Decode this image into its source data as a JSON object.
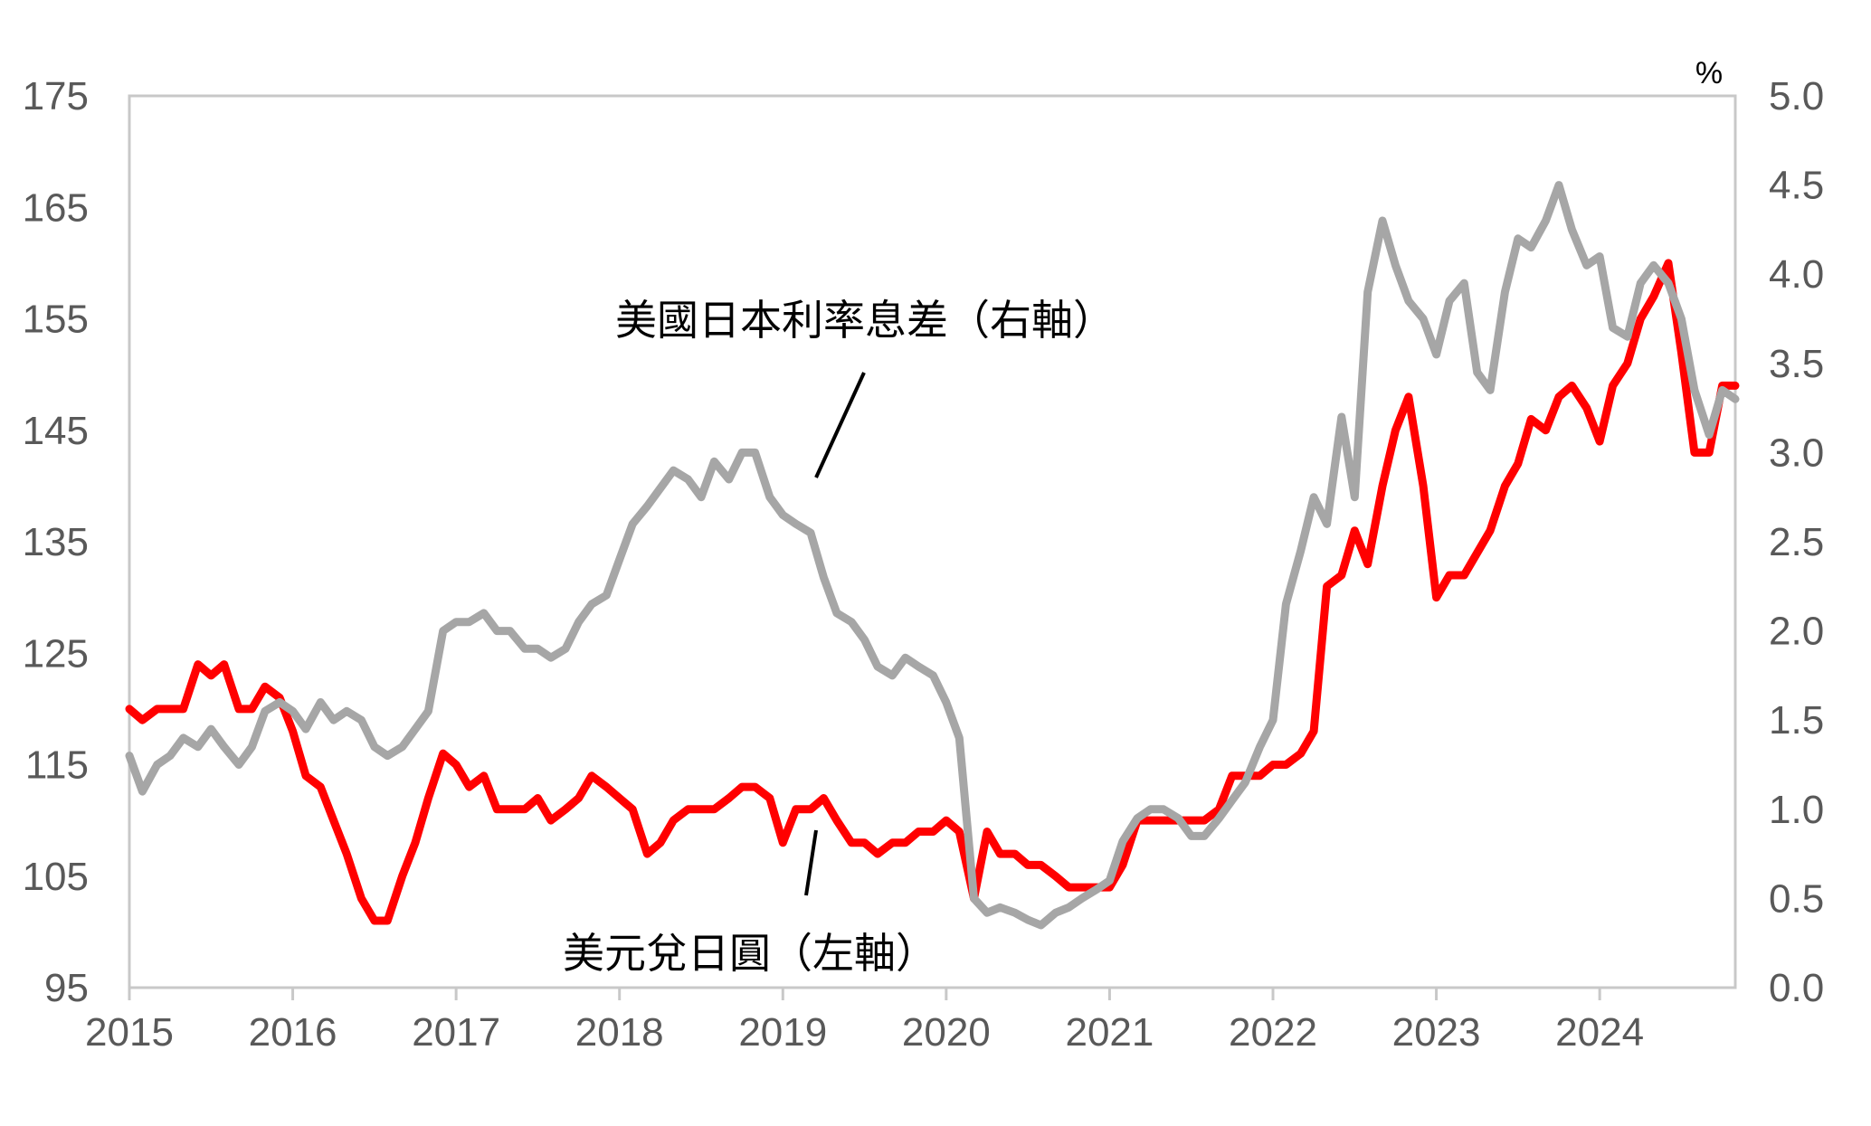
{
  "chart_data": {
    "type": "line",
    "x_ticks": [
      "2015",
      "2016",
      "2017",
      "2018",
      "2019",
      "2020",
      "2021",
      "2022",
      "2023",
      "2024"
    ],
    "xlim": [
      2015,
      2024.83
    ],
    "left_axis": {
      "ticks": [
        "175",
        "165",
        "155",
        "145",
        "135",
        "125",
        "115",
        "105",
        "95"
      ],
      "ylim": [
        95,
        175
      ]
    },
    "right_axis": {
      "unit": "%",
      "ticks": [
        "5.0",
        "4.5",
        "4.0",
        "3.5",
        "3.0",
        "2.5",
        "2.0",
        "1.5",
        "1.0",
        "0.5",
        "0.0"
      ],
      "ylim": [
        0,
        5
      ]
    },
    "grid": false,
    "series": [
      {
        "name": "美元兌日圓（左軸）",
        "axis": "left",
        "color": "#ff0000",
        "x": [
          2015.0,
          2015.08,
          2015.17,
          2015.25,
          2015.33,
          2015.42,
          2015.5,
          2015.58,
          2015.67,
          2015.75,
          2015.83,
          2015.92,
          2016.0,
          2016.08,
          2016.17,
          2016.25,
          2016.33,
          2016.42,
          2016.5,
          2016.58,
          2016.67,
          2016.75,
          2016.83,
          2016.92,
          2017.0,
          2017.08,
          2017.17,
          2017.25,
          2017.33,
          2017.42,
          2017.5,
          2017.58,
          2017.67,
          2017.75,
          2017.83,
          2017.92,
          2018.0,
          2018.08,
          2018.17,
          2018.25,
          2018.33,
          2018.42,
          2018.5,
          2018.58,
          2018.67,
          2018.75,
          2018.83,
          2018.92,
          2019.0,
          2019.08,
          2019.17,
          2019.25,
          2019.33,
          2019.42,
          2019.5,
          2019.58,
          2019.67,
          2019.75,
          2019.83,
          2019.92,
          2020.0,
          2020.08,
          2020.17,
          2020.25,
          2020.33,
          2020.42,
          2020.5,
          2020.58,
          2020.67,
          2020.75,
          2020.83,
          2020.92,
          2021.0,
          2021.08,
          2021.17,
          2021.25,
          2021.33,
          2021.42,
          2021.5,
          2021.58,
          2021.67,
          2021.75,
          2021.83,
          2021.92,
          2022.0,
          2022.08,
          2022.17,
          2022.25,
          2022.33,
          2022.42,
          2022.5,
          2022.58,
          2022.67,
          2022.75,
          2022.83,
          2022.92,
          2023.0,
          2023.08,
          2023.17,
          2023.25,
          2023.33,
          2023.42,
          2023.5,
          2023.58,
          2023.67,
          2023.75,
          2023.83,
          2023.92,
          2024.0,
          2024.08,
          2024.17,
          2024.25,
          2024.33,
          2024.42,
          2024.5,
          2024.58,
          2024.67,
          2024.75,
          2024.83
        ],
        "values": [
          120,
          119,
          120,
          120,
          120,
          124,
          123,
          124,
          120,
          120,
          122,
          121,
          118,
          114,
          113,
          110,
          107,
          103,
          101,
          101,
          105,
          108,
          112,
          116,
          115,
          113,
          114,
          111,
          111,
          111,
          112,
          110,
          111,
          112,
          114,
          113,
          112,
          111,
          107,
          108,
          110,
          111,
          111,
          111,
          112,
          113,
          113,
          112,
          108,
          111,
          111,
          112,
          110,
          108,
          108,
          107,
          108,
          108,
          109,
          109,
          110,
          109,
          103,
          109,
          107,
          107,
          106,
          106,
          105,
          104,
          104,
          104,
          104,
          106,
          110,
          110,
          110,
          110,
          110,
          110,
          111,
          114,
          114,
          114,
          115,
          115,
          116,
          118,
          131,
          132,
          136,
          133,
          140,
          145,
          148,
          140,
          130,
          132,
          132,
          134,
          136,
          140,
          142,
          146,
          145,
          148,
          149,
          147,
          144,
          149,
          151,
          155,
          157,
          160,
          152,
          143,
          143,
          149,
          149
        ]
      },
      {
        "name": "美國日本利率息差（右軸）",
        "axis": "right",
        "color": "#a6a6a6",
        "x": [
          2015.0,
          2015.08,
          2015.17,
          2015.25,
          2015.33,
          2015.42,
          2015.5,
          2015.58,
          2015.67,
          2015.75,
          2015.83,
          2015.92,
          2016.0,
          2016.08,
          2016.17,
          2016.25,
          2016.33,
          2016.42,
          2016.5,
          2016.58,
          2016.67,
          2016.75,
          2016.83,
          2016.92,
          2017.0,
          2017.08,
          2017.17,
          2017.25,
          2017.33,
          2017.42,
          2017.5,
          2017.58,
          2017.67,
          2017.75,
          2017.83,
          2017.92,
          2018.0,
          2018.08,
          2018.17,
          2018.25,
          2018.33,
          2018.42,
          2018.5,
          2018.58,
          2018.67,
          2018.75,
          2018.83,
          2018.92,
          2019.0,
          2019.08,
          2019.17,
          2019.25,
          2019.33,
          2019.42,
          2019.5,
          2019.58,
          2019.67,
          2019.75,
          2019.83,
          2019.92,
          2020.0,
          2020.08,
          2020.17,
          2020.25,
          2020.33,
          2020.42,
          2020.5,
          2020.58,
          2020.67,
          2020.75,
          2020.83,
          2020.92,
          2021.0,
          2021.08,
          2021.17,
          2021.25,
          2021.33,
          2021.42,
          2021.5,
          2021.58,
          2021.67,
          2021.75,
          2021.83,
          2021.92,
          2022.0,
          2022.08,
          2022.17,
          2022.25,
          2022.33,
          2022.42,
          2022.5,
          2022.58,
          2022.67,
          2022.75,
          2022.83,
          2022.92,
          2023.0,
          2023.08,
          2023.17,
          2023.25,
          2023.33,
          2023.42,
          2023.5,
          2023.58,
          2023.67,
          2023.75,
          2023.83,
          2023.92,
          2024.0,
          2024.08,
          2024.17,
          2024.25,
          2024.33,
          2024.42,
          2024.5,
          2024.58,
          2024.67,
          2024.75,
          2024.83
        ],
        "values": [
          1.3,
          1.1,
          1.25,
          1.3,
          1.4,
          1.35,
          1.45,
          1.35,
          1.25,
          1.35,
          1.55,
          1.6,
          1.55,
          1.45,
          1.6,
          1.5,
          1.55,
          1.5,
          1.35,
          1.3,
          1.35,
          1.45,
          1.55,
          2.0,
          2.05,
          2.05,
          2.1,
          2.0,
          2.0,
          1.9,
          1.9,
          1.85,
          1.9,
          2.05,
          2.15,
          2.2,
          2.4,
          2.6,
          2.7,
          2.8,
          2.9,
          2.85,
          2.75,
          2.95,
          2.85,
          3.0,
          3.0,
          2.75,
          2.65,
          2.6,
          2.55,
          2.3,
          2.1,
          2.05,
          1.95,
          1.8,
          1.75,
          1.85,
          1.8,
          1.75,
          1.6,
          1.4,
          0.5,
          0.42,
          0.45,
          0.42,
          0.38,
          0.35,
          0.42,
          0.45,
          0.5,
          0.55,
          0.6,
          0.82,
          0.95,
          1.0,
          1.0,
          0.95,
          0.85,
          0.85,
          0.95,
          1.05,
          1.15,
          1.35,
          1.5,
          2.15,
          2.45,
          2.75,
          2.6,
          3.2,
          2.75,
          3.9,
          4.3,
          4.05,
          3.85,
          3.75,
          3.55,
          3.85,
          3.95,
          3.45,
          3.35,
          3.9,
          4.2,
          4.15,
          4.3,
          4.5,
          4.25,
          4.05,
          4.1,
          3.7,
          3.65,
          3.95,
          4.05,
          3.95,
          3.75,
          3.35,
          3.1,
          3.35,
          3.3
        ]
      }
    ],
    "annotations": [
      {
        "text": "美國日本利率息差（右軸）",
        "target": "spread"
      },
      {
        "text": "美元兌日圓（左軸）",
        "target": "usdjpy"
      }
    ]
  }
}
